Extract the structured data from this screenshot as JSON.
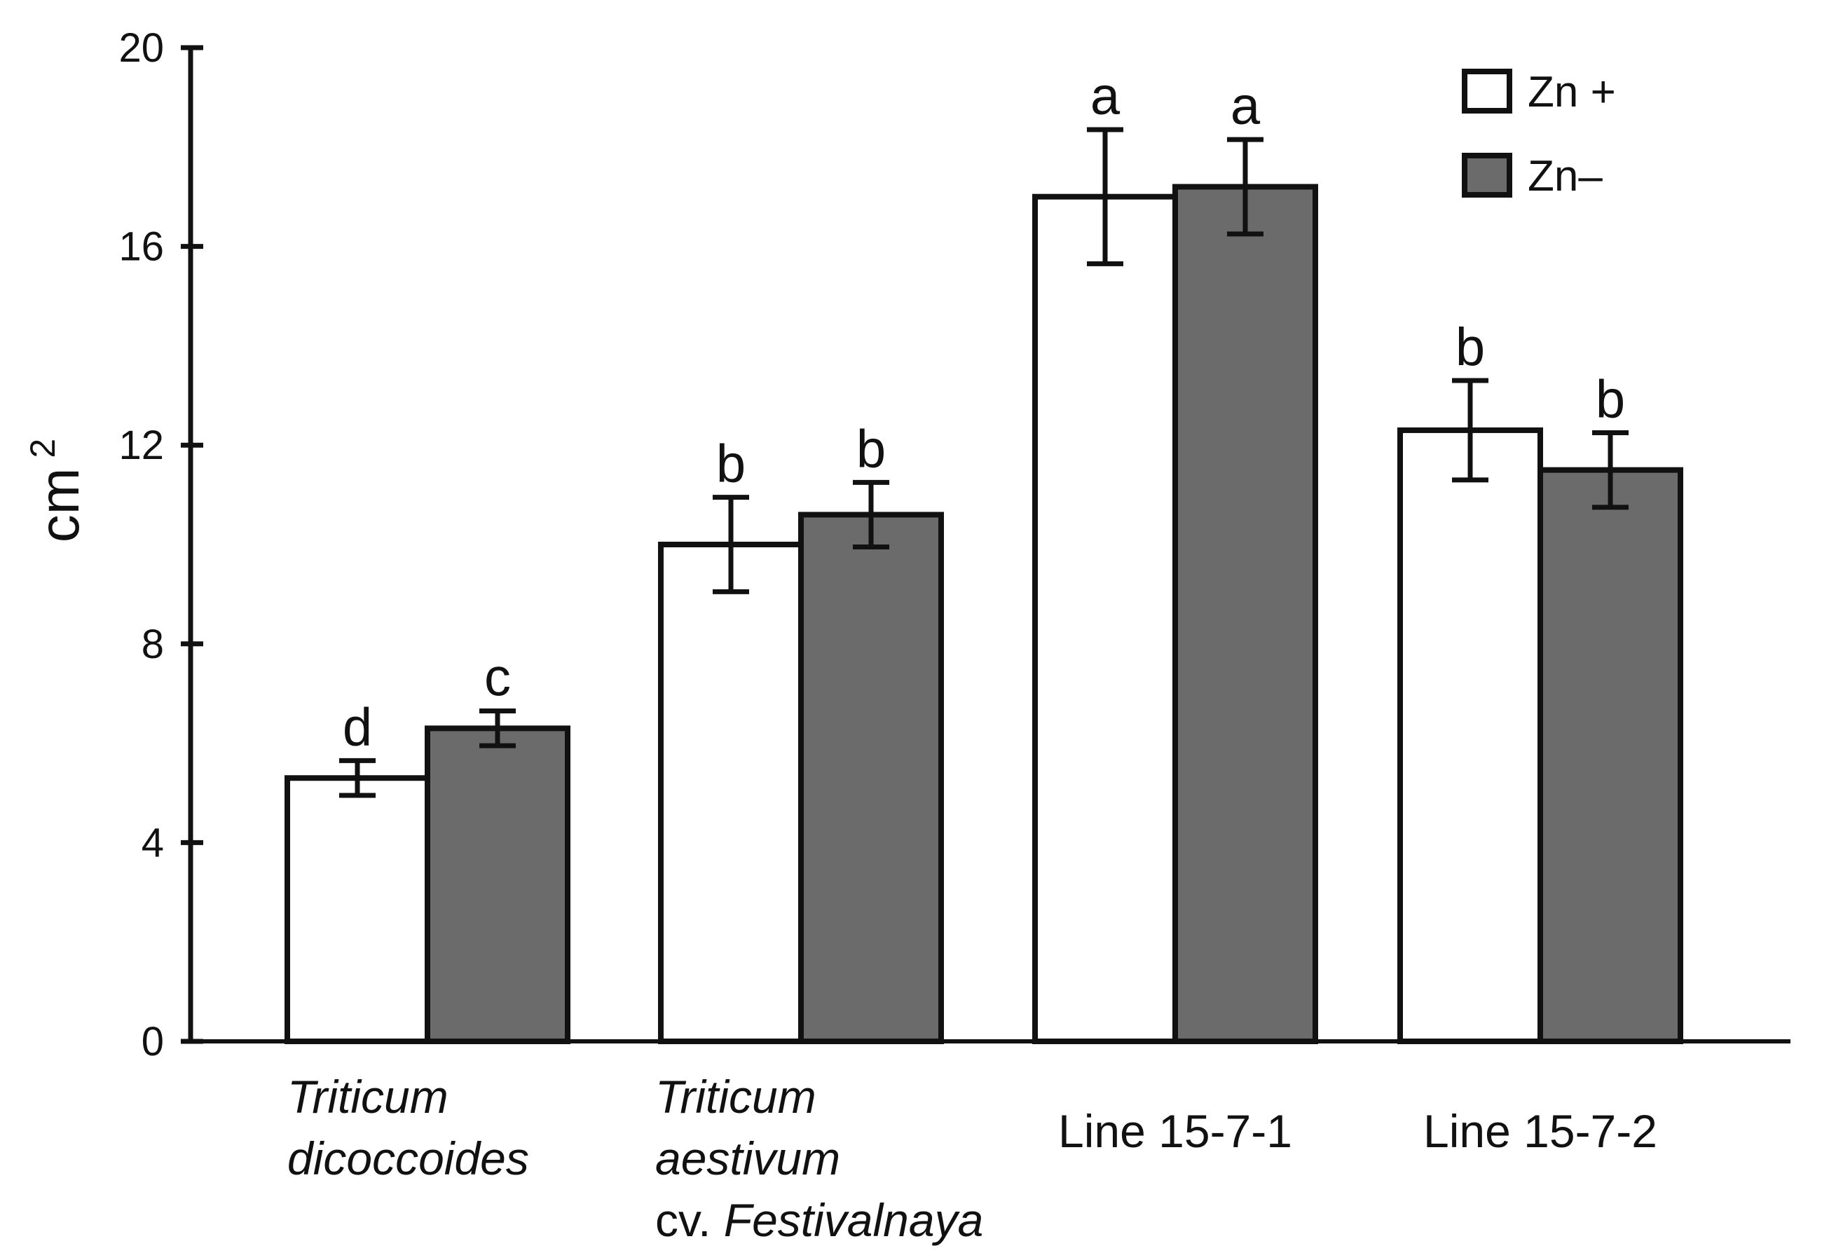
{
  "chart_data": {
    "type": "bar",
    "title": "",
    "xlabel": "",
    "ylabel": "cm",
    "ylabel_superscript": "2",
    "ylim": [
      0,
      20
    ],
    "yticks": [
      0,
      4,
      8,
      12,
      16,
      20
    ],
    "grid": false,
    "legend_position": "top-right",
    "categories": [
      {
        "id": "triticum-dicoccoides",
        "lines": [
          {
            "text": "Triticum",
            "italic": true
          },
          {
            "text": "dicoccoides",
            "italic": true
          }
        ]
      },
      {
        "id": "triticum-aestivum",
        "lines": [
          {
            "text": "Triticum",
            "italic": true
          },
          {
            "text": "aestivum",
            "italic": true
          },
          {
            "prefix": "cv. ",
            "text": "Festivalnaya",
            "italic": true
          }
        ]
      },
      {
        "id": "line-15-7-1",
        "lines": [
          {
            "text": "Line 15-7-1",
            "italic": false
          }
        ]
      },
      {
        "id": "line-15-7-2",
        "lines": [
          {
            "text": "Line 15-7-2",
            "italic": false
          }
        ]
      }
    ],
    "series": [
      {
        "name": "Zn +",
        "color": "#ffffff",
        "values": [
          5.3,
          10.0,
          17.0,
          12.3
        ],
        "errors": [
          0.35,
          0.95,
          1.35,
          1.0
        ],
        "letters": [
          "d",
          "b",
          "a",
          "b"
        ]
      },
      {
        "name": "Zn–",
        "color": "#6b6b6b",
        "values": [
          6.3,
          10.6,
          17.2,
          11.5
        ],
        "errors": [
          0.35,
          0.65,
          0.95,
          0.75
        ],
        "letters": [
          "c",
          "b",
          "a",
          "b"
        ]
      }
    ]
  }
}
